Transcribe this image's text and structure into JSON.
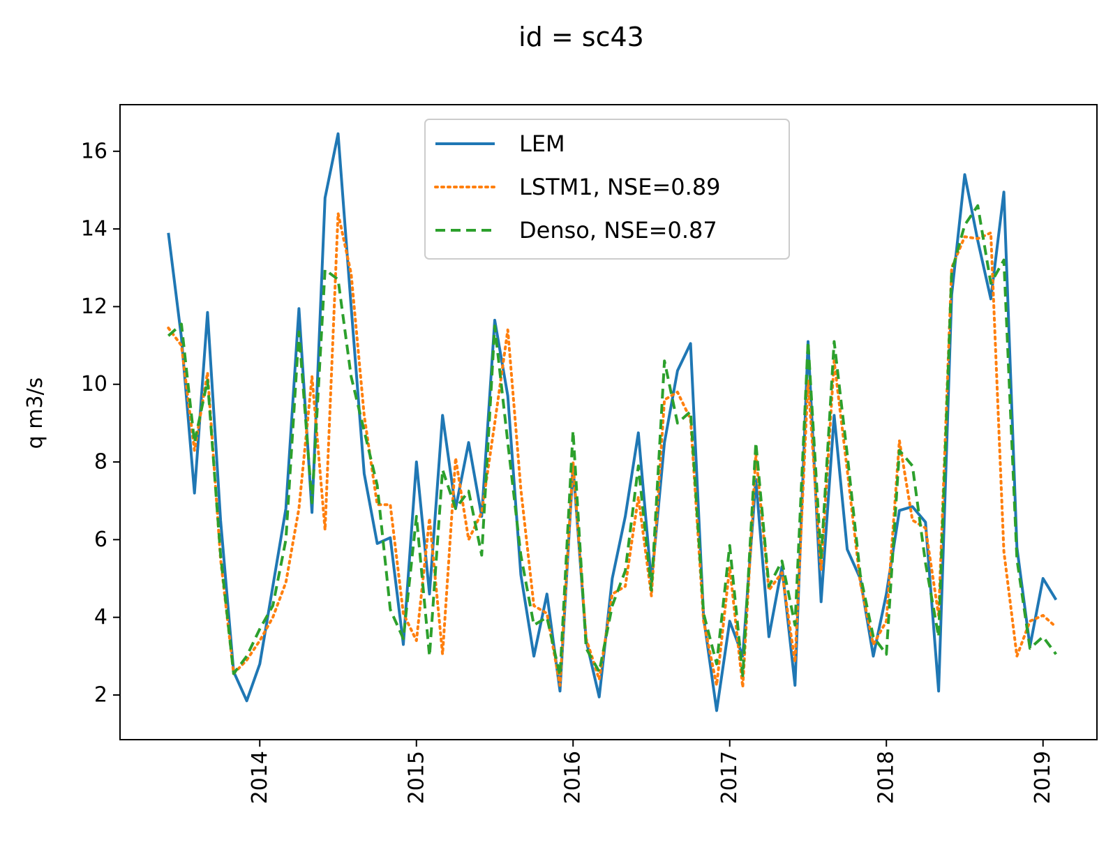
{
  "chart_data": {
    "type": "line",
    "title": "id = sc43",
    "xlabel": "",
    "ylabel": "q m3/s",
    "xlim": [
      "2013-02-10",
      "2019-05-05"
    ],
    "ylim": [
      0.85,
      17.2
    ],
    "x_ticks": [
      "2014",
      "2015",
      "2016",
      "2017",
      "2018",
      "2019"
    ],
    "y_ticks": [
      2,
      4,
      6,
      8,
      10,
      12,
      14,
      16
    ],
    "grid": false,
    "legend_position": "top-center",
    "dates": [
      "2013-06",
      "2013-07",
      "2013-08",
      "2013-09",
      "2013-10",
      "2013-11",
      "2013-12",
      "2014-01",
      "2014-02",
      "2014-03",
      "2014-04",
      "2014-05",
      "2014-06",
      "2014-07",
      "2014-08",
      "2014-09",
      "2014-10",
      "2014-11",
      "2014-12",
      "2015-01",
      "2015-02",
      "2015-03",
      "2015-04",
      "2015-05",
      "2015-06",
      "2015-07",
      "2015-08",
      "2015-09",
      "2015-10",
      "2015-11",
      "2015-12",
      "2016-01",
      "2016-02",
      "2016-03",
      "2016-04",
      "2016-05",
      "2016-06",
      "2016-07",
      "2016-08",
      "2016-09",
      "2016-10",
      "2016-11",
      "2016-12",
      "2017-01",
      "2017-02",
      "2017-03",
      "2017-04",
      "2017-05",
      "2017-06",
      "2017-07",
      "2017-08",
      "2017-09",
      "2017-10",
      "2017-11",
      "2017-12",
      "2018-01",
      "2018-02",
      "2018-03",
      "2018-04",
      "2018-05",
      "2018-06",
      "2018-07",
      "2018-08",
      "2018-09",
      "2018-10",
      "2018-11",
      "2018-12",
      "2019-01",
      "2019-02"
    ],
    "series": [
      {
        "name": "LEM",
        "color": "#1f77b4",
        "style": "solid",
        "values": [
          13.9,
          11.2,
          7.2,
          11.85,
          6.5,
          2.6,
          1.85,
          2.8,
          4.8,
          6.8,
          11.95,
          6.7,
          14.8,
          16.45,
          12.0,
          7.7,
          5.9,
          6.05,
          3.3,
          8.0,
          4.6,
          9.2,
          6.8,
          8.5,
          6.6,
          11.65,
          9.7,
          5.1,
          3.0,
          4.6,
          2.1,
          7.9,
          3.4,
          1.95,
          5.0,
          6.6,
          8.75,
          4.9,
          8.5,
          10.35,
          11.05,
          4.0,
          1.6,
          3.9,
          3.0,
          7.55,
          3.5,
          5.3,
          2.25,
          11.1,
          4.4,
          9.2,
          5.75,
          5.0,
          3.0,
          4.6,
          6.75,
          6.85,
          6.45,
          2.1,
          12.3,
          15.4,
          13.7,
          12.2,
          14.95,
          5.8,
          3.25,
          5.0,
          4.45
        ]
      },
      {
        "name": "LSTM1, NSE=0.89",
        "color": "#ff7f0e",
        "style": "dotted",
        "values": [
          11.45,
          11.0,
          8.3,
          10.3,
          5.5,
          2.55,
          2.9,
          3.4,
          4.0,
          4.9,
          6.8,
          10.2,
          6.25,
          14.4,
          12.85,
          9.2,
          6.9,
          6.9,
          4.1,
          3.4,
          6.55,
          3.05,
          8.1,
          6.0,
          6.7,
          9.0,
          11.4,
          7.3,
          4.3,
          4.1,
          2.25,
          8.0,
          3.45,
          2.4,
          4.6,
          4.8,
          7.1,
          4.55,
          9.6,
          9.8,
          9.1,
          3.9,
          2.25,
          5.3,
          2.2,
          8.2,
          4.7,
          5.15,
          2.85,
          10.1,
          5.2,
          10.6,
          7.8,
          4.9,
          3.3,
          3.9,
          8.55,
          6.5,
          6.3,
          4.05,
          13.0,
          13.8,
          13.75,
          13.9,
          5.7,
          3.0,
          3.9,
          4.05,
          3.75
        ]
      },
      {
        "name": "Denso, NSE=0.87",
        "color": "#2ca02c",
        "style": "dashed",
        "values": [
          11.25,
          11.55,
          8.5,
          10.1,
          5.6,
          2.55,
          3.0,
          3.7,
          4.3,
          6.0,
          11.35,
          6.95,
          12.95,
          12.7,
          10.2,
          8.8,
          7.4,
          4.2,
          3.45,
          6.6,
          3.0,
          7.8,
          6.8,
          7.25,
          5.6,
          11.5,
          8.5,
          5.6,
          3.8,
          4.0,
          2.5,
          8.8,
          3.2,
          2.6,
          4.3,
          5.2,
          7.9,
          4.7,
          10.6,
          9.0,
          9.3,
          4.1,
          2.8,
          5.85,
          2.5,
          8.5,
          4.8,
          5.45,
          3.8,
          11.1,
          5.5,
          11.1,
          8.2,
          5.1,
          3.5,
          3.05,
          8.3,
          7.9,
          5.4,
          3.5,
          12.9,
          14.1,
          14.6,
          12.6,
          13.2,
          5.5,
          3.2,
          3.5,
          3.05
        ]
      }
    ]
  }
}
